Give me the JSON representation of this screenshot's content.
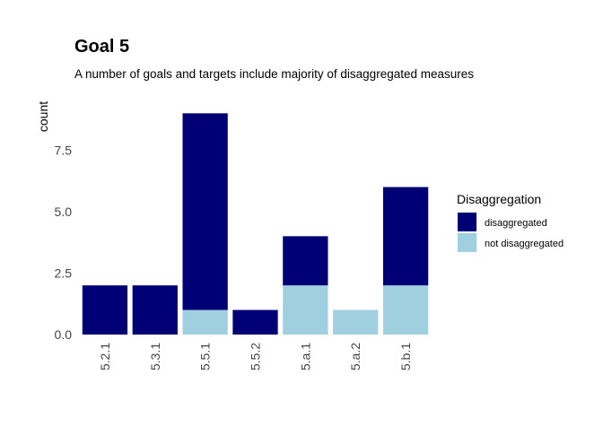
{
  "chart_data": {
    "type": "bar",
    "stacked": true,
    "title": "Goal  5",
    "subtitle": "A number of goals and targets include majority of disaggregated measures",
    "xlabel": "",
    "ylabel": "count",
    "categories": [
      "5.2.1",
      "5.3.1",
      "5.5.1",
      "5.5.2",
      "5.a.1",
      "5.a.2",
      "5.b.1"
    ],
    "series": [
      {
        "name": "not disaggregated",
        "color": "#A0CFE0",
        "values": [
          0,
          0,
          1,
          0,
          2,
          1,
          2
        ]
      },
      {
        "name": "disaggregated",
        "color": "#000075",
        "values": [
          2,
          2,
          8,
          1,
          2,
          0,
          4
        ]
      }
    ],
    "ylim": [
      0,
      9.45
    ],
    "yticks": [
      "0.0",
      "2.5",
      "5.0",
      "7.5"
    ],
    "ytick_values": [
      0,
      2.5,
      5,
      7.5
    ],
    "grid": false,
    "legend": {
      "title": "Disaggregation",
      "position": "right",
      "entries": [
        {
          "label": "disaggregated",
          "color": "#000075"
        },
        {
          "label": "not disaggregated",
          "color": "#A0CFE0"
        }
      ]
    }
  }
}
